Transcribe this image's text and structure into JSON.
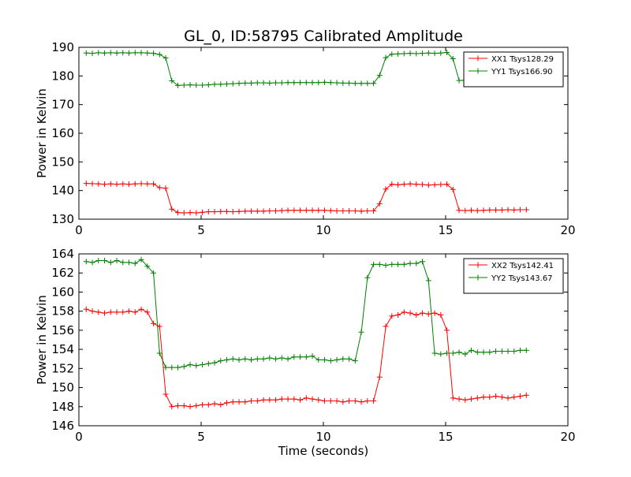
{
  "chart_data": [
    {
      "type": "line",
      "title": "GL_0, ID:58795 Calibrated Amplitude",
      "xlabel": "",
      "ylabel": "Power in Kelvin",
      "xlim": [
        0,
        20
      ],
      "ylim": [
        130,
        190
      ],
      "xticks": [
        0,
        5,
        10,
        15,
        20
      ],
      "yticks": [
        130,
        140,
        150,
        160,
        170,
        180,
        190
      ],
      "legend_position": "top-right",
      "grid": false,
      "series": [
        {
          "name": "XX1 Tsys128.29",
          "color": "#ff0000",
          "marker": "+",
          "x": [
            0.3,
            0.55,
            0.8,
            1.05,
            1.3,
            1.55,
            1.8,
            2.05,
            2.3,
            2.55,
            2.8,
            3.05,
            3.3,
            3.55,
            3.8,
            4.05,
            4.3,
            4.55,
            4.8,
            5.05,
            5.3,
            5.55,
            5.8,
            6.05,
            6.3,
            6.55,
            6.8,
            7.05,
            7.3,
            7.55,
            7.8,
            8.05,
            8.3,
            8.55,
            8.8,
            9.05,
            9.3,
            9.55,
            9.8,
            10.05,
            10.3,
            10.55,
            10.8,
            11.05,
            11.3,
            11.55,
            11.8,
            12.05,
            12.3,
            12.55,
            12.8,
            13.05,
            13.3,
            13.55,
            13.8,
            14.05,
            14.3,
            14.55,
            14.8,
            15.05,
            15.3,
            15.55,
            15.8,
            16.05,
            16.3,
            16.55,
            16.8,
            17.05,
            17.3,
            17.55,
            17.8,
            18.05,
            18.3
          ],
          "y": [
            142.5,
            142.4,
            142.3,
            142.2,
            142.3,
            142.2,
            142.3,
            142.2,
            142.3,
            142.4,
            142.3,
            142.3,
            141.0,
            140.8,
            133.5,
            132.3,
            132.2,
            132.3,
            132.2,
            132.4,
            132.6,
            132.6,
            132.7,
            132.7,
            132.6,
            132.7,
            132.8,
            132.8,
            132.8,
            132.8,
            132.9,
            132.9,
            133.0,
            133.1,
            133.1,
            133.1,
            133.1,
            133.1,
            133.1,
            133.1,
            133.0,
            132.9,
            132.9,
            132.9,
            132.9,
            132.8,
            132.9,
            132.9,
            135.4,
            140.5,
            142.2,
            142.0,
            142.2,
            142.3,
            142.2,
            142.1,
            141.9,
            142.0,
            142.1,
            142.2,
            140.4,
            133.1,
            133.0,
            133.1,
            133.0,
            133.1,
            133.2,
            133.2,
            133.2,
            133.3,
            133.2,
            133.3,
            133.3
          ]
        },
        {
          "name": "YY1 Tsys166.90",
          "color": "#008000",
          "marker": "+",
          "x": [
            0.3,
            0.55,
            0.8,
            1.05,
            1.3,
            1.55,
            1.8,
            2.05,
            2.3,
            2.55,
            2.8,
            3.05,
            3.3,
            3.55,
            3.8,
            4.05,
            4.3,
            4.55,
            4.8,
            5.05,
            5.3,
            5.55,
            5.8,
            6.05,
            6.3,
            6.55,
            6.8,
            7.05,
            7.3,
            7.55,
            7.8,
            8.05,
            8.3,
            8.55,
            8.8,
            9.05,
            9.3,
            9.55,
            9.8,
            10.05,
            10.3,
            10.55,
            10.8,
            11.05,
            11.3,
            11.55,
            11.8,
            12.05,
            12.3,
            12.55,
            12.8,
            13.05,
            13.3,
            13.55,
            13.8,
            14.05,
            14.3,
            14.55,
            14.8,
            15.05,
            15.3,
            15.55,
            15.8,
            16.05,
            16.3,
            16.55,
            16.8,
            17.05,
            17.3,
            17.55,
            17.8,
            18.05,
            18.3
          ],
          "y": [
            188.0,
            187.9,
            188.1,
            188.0,
            188.1,
            188.0,
            188.1,
            188.0,
            188.1,
            188.1,
            188.0,
            187.9,
            187.5,
            186.3,
            178.3,
            176.7,
            176.8,
            176.9,
            176.8,
            176.8,
            176.9,
            177.1,
            177.1,
            177.2,
            177.3,
            177.4,
            177.5,
            177.5,
            177.6,
            177.6,
            177.5,
            177.6,
            177.6,
            177.7,
            177.7,
            177.7,
            177.7,
            177.7,
            177.7,
            177.8,
            177.7,
            177.6,
            177.5,
            177.5,
            177.4,
            177.4,
            177.4,
            177.4,
            180.2,
            186.4,
            187.6,
            187.7,
            187.8,
            187.9,
            187.8,
            187.9,
            188.0,
            187.9,
            188.0,
            188.2,
            186.0,
            178.4,
            178.5,
            178.5,
            178.4,
            178.5,
            178.5,
            178.5,
            178.4,
            178.5,
            178.4,
            178.5,
            178.6
          ]
        }
      ]
    },
    {
      "type": "line",
      "title": "",
      "xlabel": "Time (seconds)",
      "ylabel": "Power in Kelvin",
      "xlim": [
        0,
        20
      ],
      "ylim": [
        146,
        164
      ],
      "xticks": [
        0,
        5,
        10,
        15,
        20
      ],
      "yticks": [
        146,
        148,
        150,
        152,
        154,
        156,
        158,
        160,
        162,
        164
      ],
      "legend_position": "top-right",
      "grid": false,
      "series": [
        {
          "name": "XX2 Tsys142.41",
          "color": "#ff0000",
          "marker": "+",
          "x": [
            0.3,
            0.55,
            0.8,
            1.05,
            1.3,
            1.55,
            1.8,
            2.05,
            2.3,
            2.55,
            2.8,
            3.05,
            3.3,
            3.55,
            3.8,
            4.05,
            4.3,
            4.55,
            4.8,
            5.05,
            5.3,
            5.55,
            5.8,
            6.05,
            6.3,
            6.55,
            6.8,
            7.05,
            7.3,
            7.55,
            7.8,
            8.05,
            8.3,
            8.55,
            8.8,
            9.05,
            9.3,
            9.55,
            9.8,
            10.05,
            10.3,
            10.55,
            10.8,
            11.05,
            11.3,
            11.55,
            11.8,
            12.05,
            12.3,
            12.55,
            12.8,
            13.05,
            13.3,
            13.55,
            13.8,
            14.05,
            14.3,
            14.55,
            14.8,
            15.05,
            15.3,
            15.55,
            15.8,
            16.05,
            16.3,
            16.55,
            16.8,
            17.05,
            17.3,
            17.55,
            17.8,
            18.05,
            18.3
          ],
          "y": [
            158.2,
            158.0,
            157.9,
            157.8,
            157.9,
            157.9,
            157.9,
            158.0,
            157.9,
            158.2,
            157.9,
            156.7,
            156.4,
            149.3,
            148.0,
            148.1,
            148.1,
            148.0,
            148.1,
            148.2,
            148.2,
            148.3,
            148.2,
            148.4,
            148.5,
            148.5,
            148.5,
            148.6,
            148.6,
            148.7,
            148.7,
            148.7,
            148.8,
            148.8,
            148.8,
            148.7,
            148.9,
            148.8,
            148.7,
            148.6,
            148.6,
            148.6,
            148.5,
            148.6,
            148.6,
            148.5,
            148.6,
            148.6,
            151.1,
            156.4,
            157.5,
            157.6,
            157.9,
            157.8,
            157.6,
            157.8,
            157.7,
            157.8,
            157.6,
            156.0,
            148.9,
            148.8,
            148.7,
            148.8,
            148.9,
            149.0,
            149.0,
            149.1,
            149.0,
            148.9,
            149.0,
            149.1,
            149.2
          ]
        },
        {
          "name": "YY2 Tsys143.67",
          "color": "#008000",
          "marker": "+",
          "x": [
            0.3,
            0.55,
            0.8,
            1.05,
            1.3,
            1.55,
            1.8,
            2.05,
            2.3,
            2.55,
            2.8,
            3.05,
            3.3,
            3.55,
            3.8,
            4.05,
            4.3,
            4.55,
            4.8,
            5.05,
            5.3,
            5.55,
            5.8,
            6.05,
            6.3,
            6.55,
            6.8,
            7.05,
            7.3,
            7.55,
            7.8,
            8.05,
            8.3,
            8.55,
            8.8,
            9.05,
            9.3,
            9.55,
            9.8,
            10.05,
            10.3,
            10.55,
            10.8,
            11.05,
            11.3,
            11.55,
            11.8,
            12.05,
            12.3,
            12.55,
            12.8,
            13.05,
            13.3,
            13.55,
            13.8,
            14.05,
            14.3,
            14.55,
            14.8,
            15.05,
            15.3,
            15.55,
            15.8,
            16.05,
            16.3,
            16.55,
            16.8,
            17.05,
            17.3,
            17.55,
            17.8,
            18.05,
            18.3
          ],
          "y": [
            163.2,
            163.1,
            163.3,
            163.3,
            163.1,
            163.3,
            163.1,
            163.1,
            163.0,
            163.4,
            162.7,
            162.0,
            153.6,
            152.1,
            152.1,
            152.1,
            152.2,
            152.4,
            152.3,
            152.4,
            152.5,
            152.6,
            152.8,
            152.9,
            153.0,
            152.9,
            153.0,
            152.9,
            153.0,
            153.0,
            153.1,
            153.0,
            153.1,
            153.0,
            153.2,
            153.2,
            153.2,
            153.3,
            152.9,
            152.9,
            152.8,
            152.9,
            153.0,
            153.0,
            152.8,
            155.8,
            161.5,
            162.9,
            162.9,
            162.8,
            162.9,
            162.9,
            162.9,
            163.0,
            163.0,
            163.2,
            161.2,
            153.6,
            153.5,
            153.6,
            153.6,
            153.7,
            153.5,
            153.9,
            153.7,
            153.7,
            153.7,
            153.8,
            153.8,
            153.8,
            153.8,
            153.9,
            153.9
          ]
        }
      ]
    }
  ]
}
